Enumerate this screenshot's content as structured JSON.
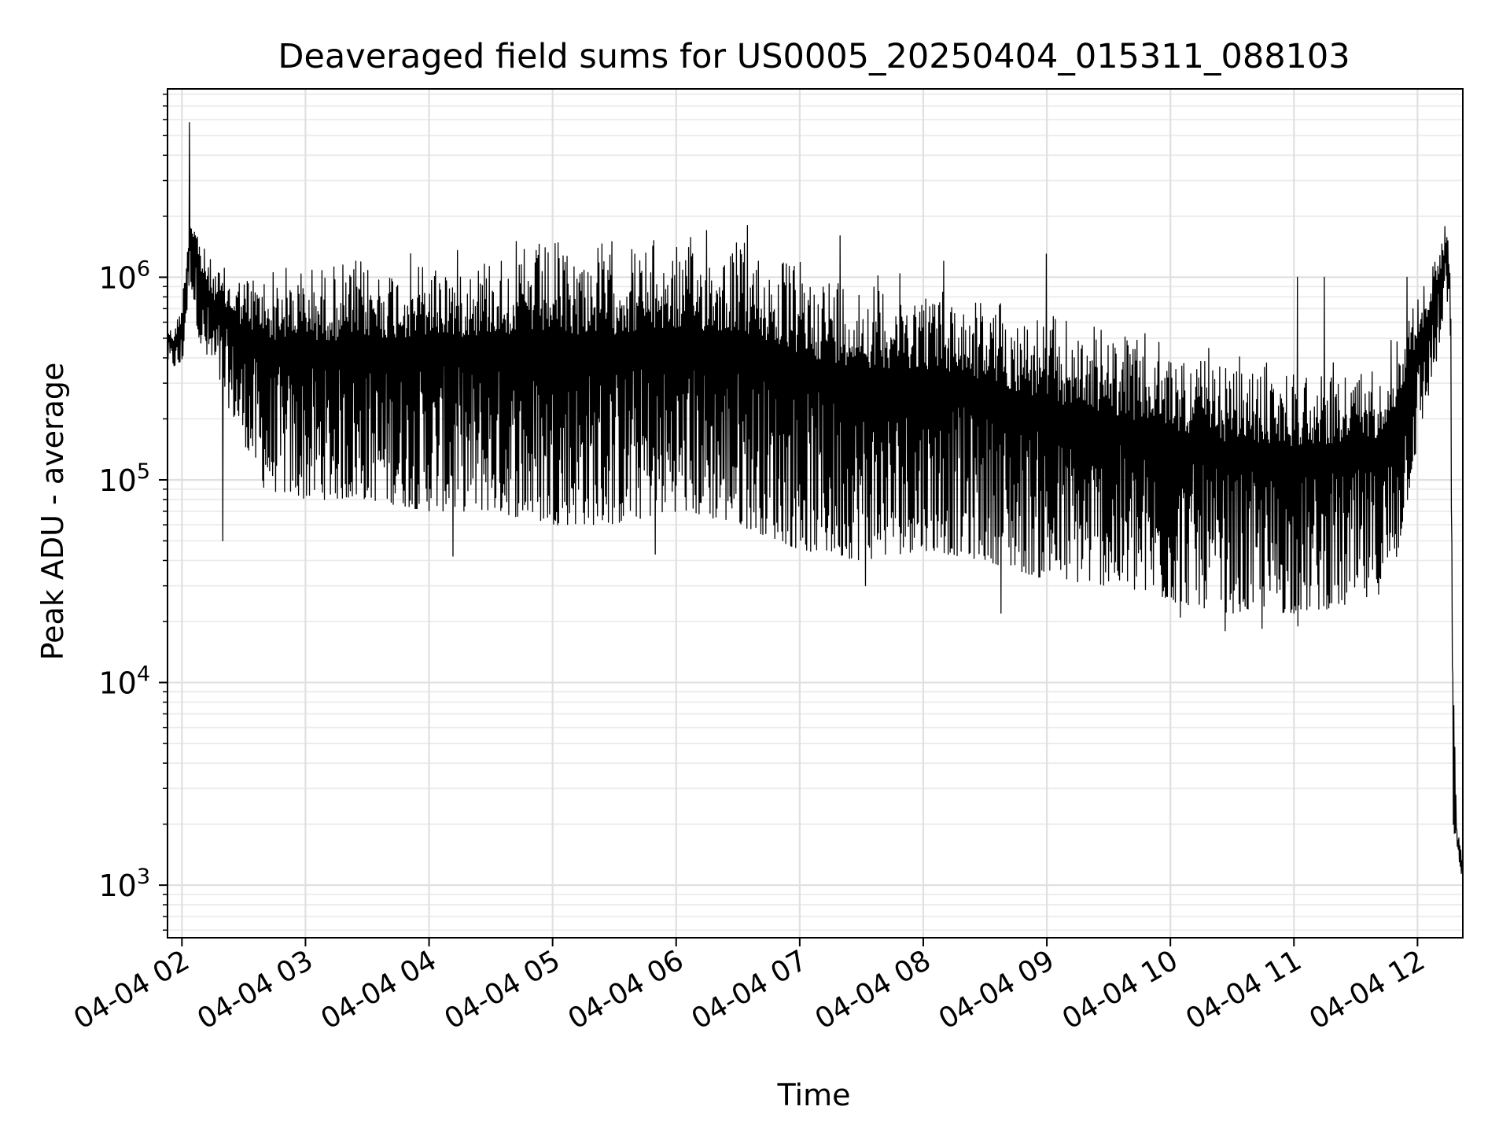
{
  "chart_data": {
    "type": "line",
    "title": "Deaveraged field sums for US0005_20250404_015311_088103",
    "xlabel": "Time",
    "ylabel": "Peak ADU - average",
    "y_scale": "log",
    "ylim": [
      550,
      8500000
    ],
    "xlim": [
      "2025-04-04 01:53",
      "2025-04-04 12:22"
    ],
    "grid": true,
    "legend": "none",
    "line_color": "#000000",
    "x_ticks": [
      {
        "value": "2025-04-04 02:00",
        "label": "04-04 02"
      },
      {
        "value": "2025-04-04 03:00",
        "label": "04-04 03"
      },
      {
        "value": "2025-04-04 04:00",
        "label": "04-04 04"
      },
      {
        "value": "2025-04-04 05:00",
        "label": "04-04 05"
      },
      {
        "value": "2025-04-04 06:00",
        "label": "04-04 06"
      },
      {
        "value": "2025-04-04 07:00",
        "label": "04-04 07"
      },
      {
        "value": "2025-04-04 08:00",
        "label": "04-04 08"
      },
      {
        "value": "2025-04-04 09:00",
        "label": "04-04 09"
      },
      {
        "value": "2025-04-04 10:00",
        "label": "04-04 10"
      },
      {
        "value": "2025-04-04 11:00",
        "label": "04-04 11"
      },
      {
        "value": "2025-04-04 12:00",
        "label": "04-04 12"
      }
    ],
    "y_ticks": [
      {
        "value": 1000,
        "base": "10",
        "exp": "3"
      },
      {
        "value": 10000,
        "base": "10",
        "exp": "4"
      },
      {
        "value": 100000,
        "base": "10",
        "exp": "5"
      },
      {
        "value": 1000000,
        "base": "10",
        "exp": "6"
      }
    ],
    "series": [
      {
        "envelope": {
          "x": [
            "2025-04-04 01:53",
            "2025-04-04 01:56",
            "2025-04-04 02:00",
            "2025-04-04 02:04",
            "2025-04-04 02:07",
            "2025-04-04 02:10",
            "2025-04-04 02:15",
            "2025-04-04 02:25",
            "2025-04-04 02:40",
            "2025-04-04 03:00",
            "2025-04-04 03:30",
            "2025-04-04 04:00",
            "2025-04-04 04:30",
            "2025-04-04 05:00",
            "2025-04-04 05:30",
            "2025-04-04 06:00",
            "2025-04-04 06:30",
            "2025-04-04 06:50",
            "2025-04-04 07:00",
            "2025-04-04 07:30",
            "2025-04-04 08:00",
            "2025-04-04 08:30",
            "2025-04-04 09:00",
            "2025-04-04 09:30",
            "2025-04-04 10:00",
            "2025-04-04 10:30",
            "2025-04-04 11:00",
            "2025-04-04 11:30",
            "2025-04-04 11:40",
            "2025-04-04 11:50",
            "2025-04-04 12:00",
            "2025-04-04 12:05",
            "2025-04-04 12:12",
            "2025-04-04 12:14",
            "2025-04-04 12:16",
            "2025-04-04 12:17",
            "2025-04-04 12:19",
            "2025-04-04 12:20",
            "2025-04-04 12:22"
          ],
          "low": [
            380000,
            360000,
            350000,
            1000000,
            600000,
            400000,
            350000,
            200000,
            90000,
            80000,
            80000,
            70000,
            70000,
            60000,
            60000,
            70000,
            60000,
            50000,
            45000,
            40000,
            45000,
            40000,
            32000,
            30000,
            25000,
            22000,
            22000,
            24000,
            26000,
            40000,
            150000,
            250000,
            500000,
            900000,
            400000,
            2000,
            1500,
            1200,
            1100
          ],
          "high": [
            600000,
            550000,
            800000,
            2200000,
            2000000,
            1500000,
            1200000,
            1100000,
            1200000,
            1250000,
            1300000,
            1400000,
            1500000,
            1600000,
            1650000,
            1600000,
            1700000,
            1400000,
            1300000,
            1150000,
            1050000,
            900000,
            700000,
            600000,
            500000,
            420000,
            400000,
            400000,
            420000,
            600000,
            900000,
            1000000,
            1800000,
            1900000,
            1500000,
            30000,
            2000,
            1800,
            1300
          ]
        },
        "spikes": [
          {
            "x": "2025-04-04 02:04",
            "value": 5800000
          },
          {
            "x": "2025-04-04 06:15",
            "value": 1700000
          },
          {
            "x": "2025-04-04 06:35",
            "value": 1800000
          },
          {
            "x": "2025-04-04 07:20",
            "value": 1600000
          },
          {
            "x": "2025-04-04 08:10",
            "value": 1200000
          },
          {
            "x": "2025-04-04 09:00",
            "value": 1300000
          },
          {
            "x": "2025-04-04 11:02",
            "value": 1000000
          },
          {
            "x": "2025-04-04 11:15",
            "value": 1000000
          },
          {
            "x": "2025-04-04 11:55",
            "value": 1000000
          }
        ],
        "dips": [
          {
            "x": "2025-04-04 02:20",
            "value": 50000
          },
          {
            "x": "2025-04-04 04:12",
            "value": 42000
          },
          {
            "x": "2025-04-04 05:50",
            "value": 43000
          },
          {
            "x": "2025-04-04 07:32",
            "value": 30000
          },
          {
            "x": "2025-04-04 08:38",
            "value": 22000
          },
          {
            "x": "2025-04-04 10:05",
            "value": 21000
          },
          {
            "x": "2025-04-04 10:27",
            "value": 18000
          },
          {
            "x": "2025-04-04 10:45",
            "value": 18500
          },
          {
            "x": "2025-04-04 11:02",
            "value": 19000
          }
        ]
      }
    ]
  }
}
